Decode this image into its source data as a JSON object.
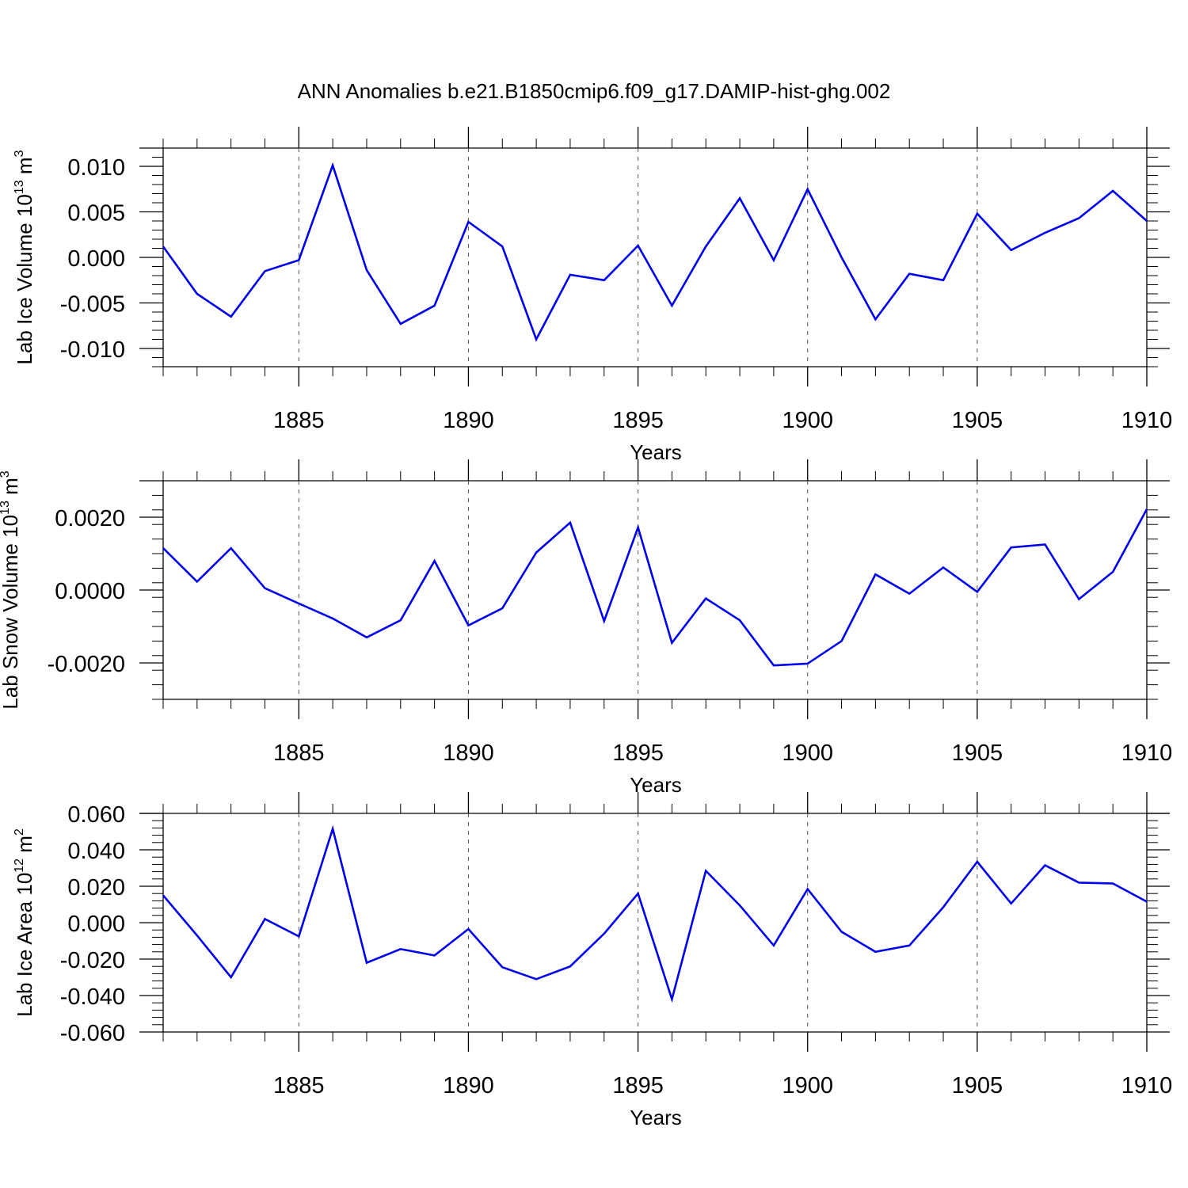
{
  "figure": {
    "title": "ANN Anomalies b.e21.B1850cmip6.f09_g17.DAMIP-hist-ghg.002",
    "line_color": "#0000ee"
  },
  "chart_data": [
    {
      "type": "line",
      "ylabel": "Lab Ice Volume 10",
      "ylabel_exp": "13",
      "ylabel_unit": " m",
      "ylabel_unit_exp": "3",
      "xlabel": "Years",
      "xlim": [
        1881,
        1910
      ],
      "ylim": [
        -0.012,
        0.012
      ],
      "xticks": [
        1885,
        1890,
        1895,
        1900,
        1905,
        1910
      ],
      "xtick_labels": [
        "1885",
        "1890",
        "1895",
        "1900",
        "1905",
        "1910"
      ],
      "yticks": [
        0.01,
        0.005,
        0.0,
        -0.005,
        -0.01
      ],
      "ytick_labels": [
        "0.010",
        "0.005",
        "0.000",
        "-0.005",
        "-0.010"
      ],
      "x": [
        1881,
        1882,
        1883,
        1884,
        1885,
        1886,
        1887,
        1888,
        1889,
        1890,
        1891,
        1892,
        1893,
        1894,
        1895,
        1896,
        1897,
        1898,
        1899,
        1900,
        1901,
        1902,
        1903,
        1904,
        1905,
        1906,
        1907,
        1908,
        1909,
        1910
      ],
      "y": [
        0.0012,
        -0.004,
        -0.0065,
        -0.0015,
        -0.0003,
        0.0101,
        -0.0014,
        -0.0073,
        -0.0053,
        0.0039,
        0.0012,
        -0.009,
        -0.0019,
        -0.0025,
        0.0013,
        -0.0053,
        0.0012,
        0.0065,
        -0.0003,
        0.0075,
        0.0,
        -0.0068,
        -0.0018,
        -0.0025,
        0.0048,
        0.0008,
        0.0027,
        0.0043,
        0.0073,
        0.004
      ]
    },
    {
      "type": "line",
      "ylabel": "Lab Snow Volume 10",
      "ylabel_exp": "13",
      "ylabel_unit": " m",
      "ylabel_unit_exp": "3",
      "xlabel": "Years",
      "xlim": [
        1881,
        1910
      ],
      "ylim": [
        -0.003,
        0.003
      ],
      "xticks": [
        1885,
        1890,
        1895,
        1900,
        1905,
        1910
      ],
      "xtick_labels": [
        "1885",
        "1890",
        "1895",
        "1900",
        "1905",
        "1910"
      ],
      "yticks": [
        0.002,
        0.0,
        -0.002
      ],
      "ytick_labels": [
        "0.0020",
        "0.0000",
        "-0.0020"
      ],
      "x": [
        1881,
        1882,
        1883,
        1884,
        1885,
        1886,
        1887,
        1888,
        1889,
        1890,
        1891,
        1892,
        1893,
        1894,
        1895,
        1896,
        1897,
        1898,
        1899,
        1900,
        1901,
        1902,
        1903,
        1904,
        1905,
        1906,
        1907,
        1908,
        1909,
        1910
      ],
      "y": [
        0.00115,
        0.00023,
        0.00115,
        5e-05,
        -0.00037,
        -0.00078,
        -0.0013,
        -0.00083,
        0.0008,
        -0.00097,
        -0.0005,
        0.00103,
        0.00185,
        -0.00085,
        0.00172,
        -0.00145,
        -0.00023,
        -0.00083,
        -0.00207,
        -0.00202,
        -0.0014,
        0.00043,
        -0.0001,
        0.00062,
        -5e-05,
        0.00117,
        0.00125,
        -0.00025,
        0.0005,
        0.00222
      ]
    },
    {
      "type": "line",
      "ylabel": "Lab Ice Area 10",
      "ylabel_exp": "12",
      "ylabel_unit": " m",
      "ylabel_unit_exp": "2",
      "xlabel": "Years",
      "xlim": [
        1881,
        1910
      ],
      "ylim": [
        -0.06,
        0.06
      ],
      "xticks": [
        1885,
        1890,
        1895,
        1900,
        1905,
        1910
      ],
      "xtick_labels": [
        "1885",
        "1890",
        "1895",
        "1900",
        "1905",
        "1910"
      ],
      "yticks": [
        0.06,
        0.04,
        0.02,
        0.0,
        -0.02,
        -0.04,
        -0.06
      ],
      "ytick_labels": [
        "0.060",
        "0.040",
        "0.020",
        "0.000",
        "-0.020",
        "-0.040",
        "-0.060"
      ],
      "x": [
        1881,
        1882,
        1883,
        1884,
        1885,
        1886,
        1887,
        1888,
        1889,
        1890,
        1891,
        1892,
        1893,
        1894,
        1895,
        1896,
        1897,
        1898,
        1899,
        1900,
        1901,
        1902,
        1903,
        1904,
        1905,
        1906,
        1907,
        1908,
        1909,
        1910
      ],
      "y": [
        0.015,
        -0.007,
        -0.03,
        0.002,
        -0.0075,
        0.0515,
        -0.022,
        -0.0145,
        -0.018,
        -0.0035,
        -0.0245,
        -0.031,
        -0.024,
        -0.006,
        0.016,
        -0.042,
        0.0285,
        0.0095,
        -0.0125,
        0.0185,
        -0.005,
        -0.016,
        -0.0125,
        0.0085,
        0.0335,
        0.0105,
        0.0315,
        0.022,
        0.0215,
        0.0115
      ]
    }
  ]
}
